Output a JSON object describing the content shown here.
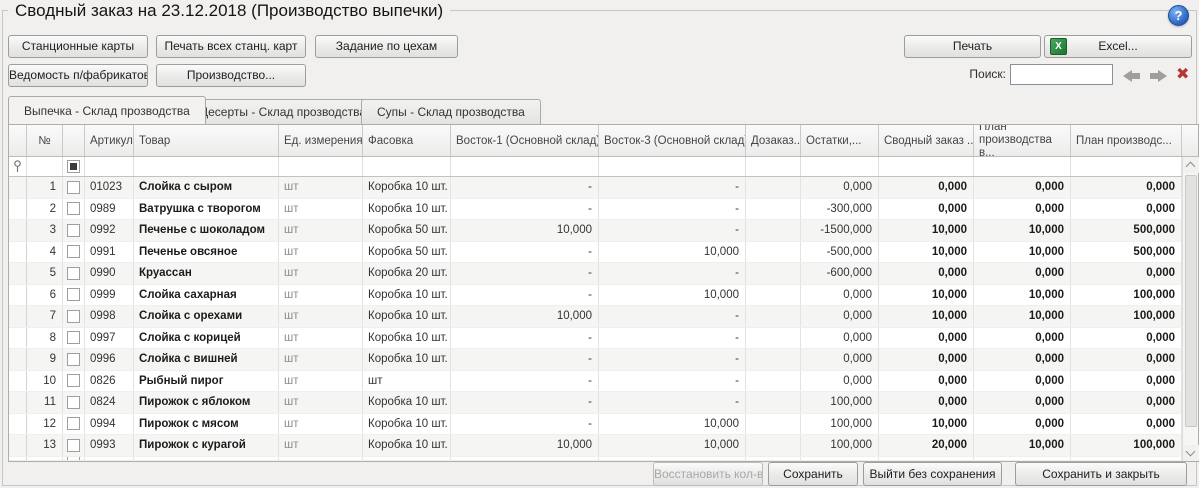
{
  "window": {
    "title": "Сводный заказ на 23.12.2018 (Производство выпечки)",
    "help_glyph": "?"
  },
  "toolbar": {
    "station_cards": "Станционные карты",
    "print_all_cards": "Печать всех станц. карт",
    "workshop_tasks": "Задание по цехам",
    "semifinished_sheet": "Ведомость п/фабрикатов",
    "production": "Производство...",
    "print": "Печать",
    "excel": "Excel...",
    "excel_icon_glyph": "X",
    "search_label": "Поиск:",
    "search_value": "",
    "clear_glyph": "✖"
  },
  "tabs": [
    {
      "label": "Выпечка - Склад прозводства",
      "active": true
    },
    {
      "label": "Десерты - Склад прозводства",
      "active": false
    },
    {
      "label": "Супы - Склад прозводства",
      "active": false
    }
  ],
  "table": {
    "columns": [
      "№",
      "Артикул",
      "Товар",
      "Ед. измерения",
      "Фасовка",
      "Восток-1 (Основной склад)",
      "Восток-3 (Основной склад)",
      "Дозаказ...",
      "Остатки,...",
      "Сводный заказ ...",
      "План производства в...",
      "План производс..."
    ],
    "rows": [
      {
        "num": "1",
        "articul": "01023",
        "name": "Слойка с сыром",
        "unit": "шт",
        "pack": "Коробка 10 шт.",
        "v1": "-",
        "v3": "-",
        "dozakaz": "",
        "ostatki": "0,000",
        "svod": "0,000",
        "plan_v": "0,000",
        "plan": "0,000"
      },
      {
        "num": "2",
        "articul": "0989",
        "name": "Ватрушка с творогом",
        "unit": "шт",
        "pack": "Коробка 10 шт.",
        "v1": "-",
        "v3": "-",
        "dozakaz": "",
        "ostatki": "-300,000",
        "svod": "0,000",
        "plan_v": "0,000",
        "plan": "0,000"
      },
      {
        "num": "3",
        "articul": "0992",
        "name": "Печенье с шоколадом",
        "unit": "шт",
        "pack": "Коробка 50 шт.",
        "v1": "10,000",
        "v3": "-",
        "dozakaz": "",
        "ostatki": "-1500,000",
        "svod": "10,000",
        "plan_v": "10,000",
        "plan": "500,000"
      },
      {
        "num": "4",
        "articul": "0991",
        "name": "Печенье овсяное",
        "unit": "шт",
        "pack": "Коробка 50 шт.",
        "v1": "-",
        "v3": "10,000",
        "dozakaz": "",
        "ostatki": "-500,000",
        "svod": "10,000",
        "plan_v": "10,000",
        "plan": "500,000"
      },
      {
        "num": "5",
        "articul": "0990",
        "name": "Круассан",
        "unit": "шт",
        "pack": "Коробка 20 шт.",
        "v1": "-",
        "v3": "-",
        "dozakaz": "",
        "ostatki": "-600,000",
        "svod": "0,000",
        "plan_v": "0,000",
        "plan": "0,000"
      },
      {
        "num": "6",
        "articul": "0999",
        "name": "Слойка сахарная",
        "unit": "шт",
        "pack": "Коробка 10 шт.",
        "v1": "-",
        "v3": "10,000",
        "dozakaz": "",
        "ostatki": "0,000",
        "svod": "10,000",
        "plan_v": "10,000",
        "plan": "100,000"
      },
      {
        "num": "7",
        "articul": "0998",
        "name": "Слойка с орехами",
        "unit": "шт",
        "pack": "Коробка 10 шт.",
        "v1": "10,000",
        "v3": "-",
        "dozakaz": "",
        "ostatki": "0,000",
        "svod": "10,000",
        "plan_v": "10,000",
        "plan": "100,000"
      },
      {
        "num": "8",
        "articul": "0997",
        "name": "Слойка с корицей",
        "unit": "шт",
        "pack": "Коробка 10 шт.",
        "v1": "-",
        "v3": "-",
        "dozakaz": "",
        "ostatki": "0,000",
        "svod": "0,000",
        "plan_v": "0,000",
        "plan": "0,000"
      },
      {
        "num": "9",
        "articul": "0996",
        "name": "Слойка с вишней",
        "unit": "шт",
        "pack": "Коробка 10 шт.",
        "v1": "-",
        "v3": "-",
        "dozakaz": "",
        "ostatki": "0,000",
        "svod": "0,000",
        "plan_v": "0,000",
        "plan": "0,000"
      },
      {
        "num": "10",
        "articul": "0826",
        "name": "Рыбный пирог",
        "unit": "шт",
        "pack": "шт",
        "v1": "-",
        "v3": "-",
        "dozakaz": "",
        "ostatki": "0,000",
        "svod": "0,000",
        "plan_v": "0,000",
        "plan": "0,000"
      },
      {
        "num": "11",
        "articul": "0824",
        "name": "Пирожок с яблоком",
        "unit": "шт",
        "pack": "Коробка 10 шт.",
        "v1": "-",
        "v3": "-",
        "dozakaz": "",
        "ostatki": "100,000",
        "svod": "0,000",
        "plan_v": "0,000",
        "plan": "0,000"
      },
      {
        "num": "12",
        "articul": "0994",
        "name": "Пирожок с мясом",
        "unit": "шт",
        "pack": "Коробка 10 шт.",
        "v1": "-",
        "v3": "10,000",
        "dozakaz": "",
        "ostatki": "100,000",
        "svod": "10,000",
        "plan_v": "0,000",
        "plan": "0,000"
      },
      {
        "num": "13",
        "articul": "0993",
        "name": "Пирожок с курагой",
        "unit": "шт",
        "pack": "Коробка 10 шт.",
        "v1": "10,000",
        "v3": "10,000",
        "dozakaz": "",
        "ostatki": "100,000",
        "svod": "20,000",
        "plan_v": "10,000",
        "plan": "100,000"
      }
    ]
  },
  "footer": {
    "restore": "Восстановить кол-во",
    "save": "Сохранить",
    "exit_no_save": "Выйти без сохранения",
    "save_close": "Сохранить и закрыть"
  }
}
